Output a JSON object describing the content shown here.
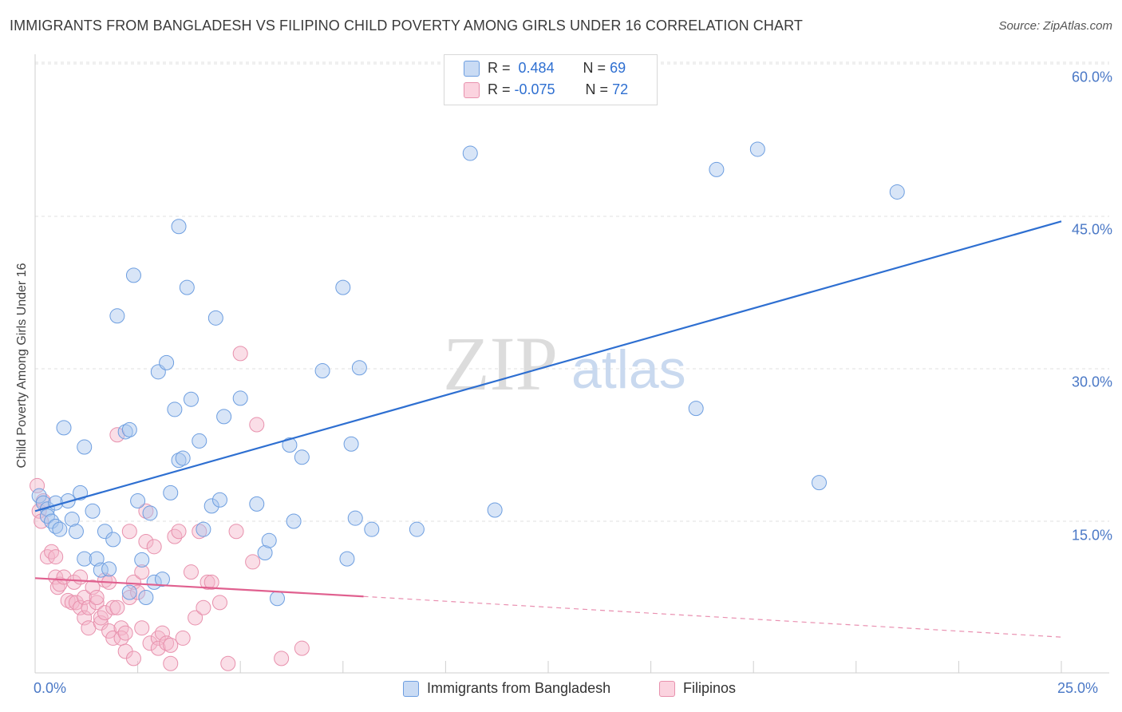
{
  "header": {
    "title": "IMMIGRANTS FROM BANGLADESH VS FILIPINO CHILD POVERTY AMONG GIRLS UNDER 16 CORRELATION CHART",
    "source": "Source: ZipAtlas.com"
  },
  "watermark": {
    "part1": "ZIP",
    "part2": "atlas"
  },
  "legend": {
    "rows": [
      {
        "r_label": "R =",
        "r_value": "0.484",
        "n_label": "N =",
        "n_value": "69",
        "color": "#a9c6ee"
      },
      {
        "r_label": "R =",
        "r_value": "-0.075",
        "n_label": "N =",
        "n_value": "72",
        "color": "#f5b6c9"
      }
    ],
    "bottom": [
      {
        "label": "Immigrants from Bangladesh",
        "color": "#a9c6ee"
      },
      {
        "label": "Filipinos",
        "color": "#f5b6c9"
      }
    ]
  },
  "chart_data": {
    "type": "scatter",
    "title": "IMMIGRANTS FROM BANGLADESH VS FILIPINO CHILD POVERTY AMONG GIRLS UNDER 16 CORRELATION CHART",
    "xlabel": "",
    "ylabel": "Child Poverty Among Girls Under 16",
    "xlim": [
      0,
      25
    ],
    "ylim": [
      0,
      63
    ],
    "x_tick_labels": [
      "0.0%",
      "25.0%"
    ],
    "y_tick_labels": [
      "15.0%",
      "30.0%",
      "45.0%",
      "60.0%"
    ],
    "y_ticks": [
      15,
      30,
      45,
      60
    ],
    "grid": "horizontal dashed",
    "series": [
      {
        "name": "Immigrants from Bangladesh",
        "color": "#a9c6ee",
        "stroke": "#6d9ee0",
        "trend": {
          "x": [
            0,
            25
          ],
          "y": [
            16.0,
            44.5
          ],
          "color": "#2e6fd1",
          "style": "solid"
        },
        "points": [
          [
            0.1,
            17.5
          ],
          [
            0.2,
            16.8
          ],
          [
            0.3,
            16.2
          ],
          [
            0.3,
            15.5
          ],
          [
            0.4,
            15.0
          ],
          [
            0.5,
            16.8
          ],
          [
            0.5,
            14.5
          ],
          [
            0.6,
            14.2
          ],
          [
            0.7,
            24.2
          ],
          [
            0.8,
            17.0
          ],
          [
            0.9,
            15.2
          ],
          [
            1.0,
            14.0
          ],
          [
            1.1,
            17.8
          ],
          [
            1.2,
            11.3
          ],
          [
            1.2,
            22.3
          ],
          [
            1.4,
            16.0
          ],
          [
            1.5,
            11.3
          ],
          [
            1.6,
            10.2
          ],
          [
            1.7,
            14.0
          ],
          [
            1.8,
            10.3
          ],
          [
            1.9,
            13.2
          ],
          [
            2.0,
            35.2
          ],
          [
            2.2,
            23.8
          ],
          [
            2.3,
            24.0
          ],
          [
            2.3,
            8.0
          ],
          [
            2.4,
            39.2
          ],
          [
            2.5,
            17.0
          ],
          [
            2.6,
            11.2
          ],
          [
            2.7,
            7.5
          ],
          [
            2.8,
            15.8
          ],
          [
            2.9,
            9.0
          ],
          [
            3.0,
            29.7
          ],
          [
            3.1,
            9.3
          ],
          [
            3.2,
            30.6
          ],
          [
            3.3,
            17.8
          ],
          [
            3.4,
            26.0
          ],
          [
            3.5,
            21.0
          ],
          [
            3.5,
            44.0
          ],
          [
            3.6,
            21.2
          ],
          [
            3.7,
            38.0
          ],
          [
            3.8,
            27.0
          ],
          [
            4.0,
            22.9
          ],
          [
            4.1,
            14.2
          ],
          [
            4.3,
            16.5
          ],
          [
            4.4,
            35.0
          ],
          [
            4.5,
            17.1
          ],
          [
            4.6,
            25.3
          ],
          [
            5.0,
            27.1
          ],
          [
            5.4,
            16.7
          ],
          [
            5.6,
            11.9
          ],
          [
            5.7,
            13.1
          ],
          [
            5.9,
            7.4
          ],
          [
            6.2,
            22.5
          ],
          [
            6.3,
            15.0
          ],
          [
            6.5,
            21.3
          ],
          [
            7.0,
            29.8
          ],
          [
            7.5,
            38.0
          ],
          [
            7.6,
            11.3
          ],
          [
            7.7,
            22.6
          ],
          [
            7.8,
            15.3
          ],
          [
            7.9,
            30.1
          ],
          [
            8.2,
            14.2
          ],
          [
            9.3,
            14.2
          ],
          [
            10.6,
            51.2
          ],
          [
            11.2,
            16.1
          ],
          [
            16.1,
            26.1
          ],
          [
            16.6,
            49.6
          ],
          [
            17.6,
            51.6
          ],
          [
            19.1,
            18.8
          ],
          [
            21.0,
            47.4
          ]
        ]
      },
      {
        "name": "Filipinos",
        "color": "#f5b6c9",
        "stroke": "#e891ad",
        "trend": {
          "x": [
            0,
            8.0
          ],
          "y": [
            9.4,
            7.6
          ],
          "color": "#e0608f",
          "style": "solid"
        },
        "trend_extension": {
          "x": [
            8.0,
            25
          ],
          "y": [
            7.6,
            3.6
          ],
          "style": "dashed"
        },
        "points": [
          [
            0.05,
            18.5
          ],
          [
            0.1,
            16.0
          ],
          [
            0.15,
            15.0
          ],
          [
            0.2,
            17.0
          ],
          [
            0.3,
            11.5
          ],
          [
            0.4,
            12.0
          ],
          [
            0.5,
            11.5
          ],
          [
            0.5,
            9.5
          ],
          [
            0.55,
            8.5
          ],
          [
            0.6,
            8.8
          ],
          [
            0.7,
            9.5
          ],
          [
            0.8,
            7.2
          ],
          [
            0.9,
            7.0
          ],
          [
            0.95,
            9.0
          ],
          [
            1.0,
            7.0
          ],
          [
            1.1,
            6.5
          ],
          [
            1.1,
            9.5
          ],
          [
            1.2,
            7.5
          ],
          [
            1.2,
            5.5
          ],
          [
            1.3,
            4.5
          ],
          [
            1.3,
            6.5
          ],
          [
            1.4,
            8.5
          ],
          [
            1.5,
            7.0
          ],
          [
            1.5,
            7.5
          ],
          [
            1.6,
            5.0
          ],
          [
            1.6,
            5.5
          ],
          [
            1.7,
            6.0
          ],
          [
            1.7,
            9.2
          ],
          [
            1.8,
            9.0
          ],
          [
            1.8,
            4.2
          ],
          [
            1.9,
            3.5
          ],
          [
            1.9,
            6.5
          ],
          [
            2.0,
            23.5
          ],
          [
            2.0,
            6.5
          ],
          [
            2.1,
            4.5
          ],
          [
            2.1,
            3.5
          ],
          [
            2.2,
            4.0
          ],
          [
            2.2,
            2.2
          ],
          [
            2.3,
            14.0
          ],
          [
            2.3,
            7.5
          ],
          [
            2.4,
            1.5
          ],
          [
            2.4,
            9.0
          ],
          [
            2.5,
            8.0
          ],
          [
            2.6,
            10.0
          ],
          [
            2.6,
            4.5
          ],
          [
            2.7,
            16.0
          ],
          [
            2.7,
            13.0
          ],
          [
            2.8,
            3.0
          ],
          [
            2.9,
            12.5
          ],
          [
            3.0,
            3.5
          ],
          [
            3.0,
            2.5
          ],
          [
            3.1,
            4.0
          ],
          [
            3.2,
            3.0
          ],
          [
            3.3,
            2.8
          ],
          [
            3.3,
            1.0
          ],
          [
            3.4,
            13.5
          ],
          [
            3.5,
            14.0
          ],
          [
            3.6,
            3.5
          ],
          [
            3.8,
            10.0
          ],
          [
            3.9,
            5.5
          ],
          [
            4.0,
            14.0
          ],
          [
            4.1,
            6.5
          ],
          [
            4.2,
            9.0
          ],
          [
            4.3,
            9.0
          ],
          [
            4.5,
            7.0
          ],
          [
            4.7,
            1.0
          ],
          [
            4.9,
            14.0
          ],
          [
            5.0,
            31.5
          ],
          [
            5.3,
            11.0
          ],
          [
            5.4,
            24.5
          ],
          [
            6.0,
            1.5
          ],
          [
            6.5,
            2.5
          ]
        ]
      }
    ]
  }
}
